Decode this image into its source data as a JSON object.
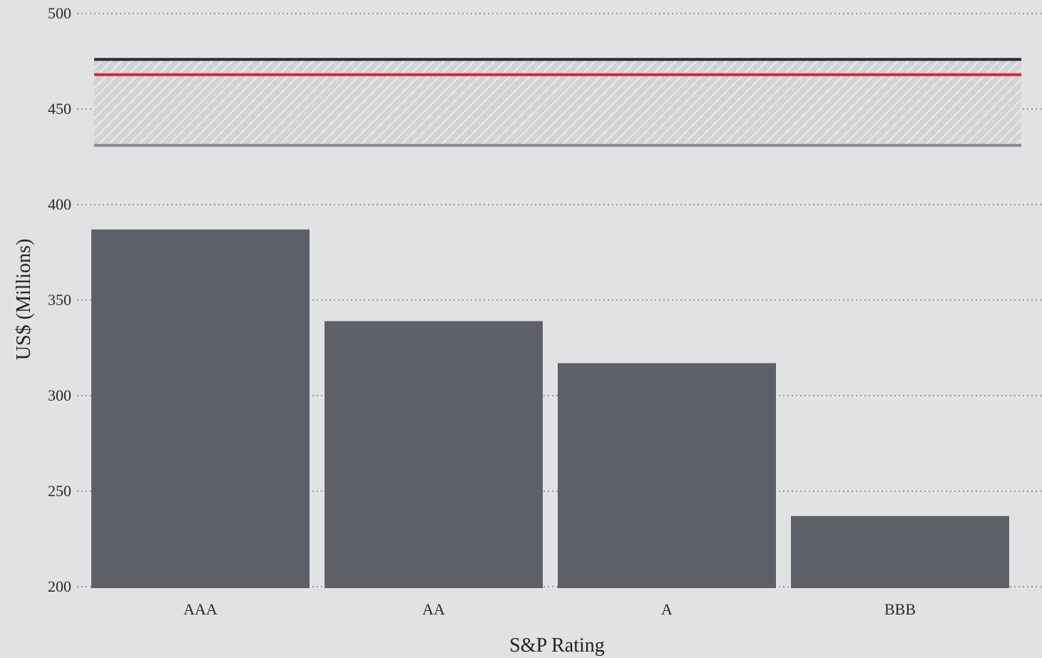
{
  "chart_data": {
    "type": "bar",
    "title": "",
    "xlabel": "S&P Rating",
    "ylabel": "US$ (Millions)",
    "categories": [
      "AAA",
      "AA",
      "A",
      "BBB"
    ],
    "values": [
      387,
      339,
      317,
      237
    ],
    "ylim": [
      200,
      500
    ],
    "yticks": [
      200,
      250,
      300,
      350,
      400,
      450,
      500
    ],
    "grid": true,
    "reference_band": {
      "low": 431,
      "high": 476
    },
    "reference_lines": [
      {
        "value": 476,
        "color": "#2a2b30"
      },
      {
        "value": 468,
        "color": "#d4283a"
      },
      {
        "value": 431,
        "color": "#8a8b8f"
      }
    ],
    "colors": {
      "bar": "#5e6067",
      "background": "#e1e2e3",
      "grid": "#9a9a9a"
    }
  }
}
